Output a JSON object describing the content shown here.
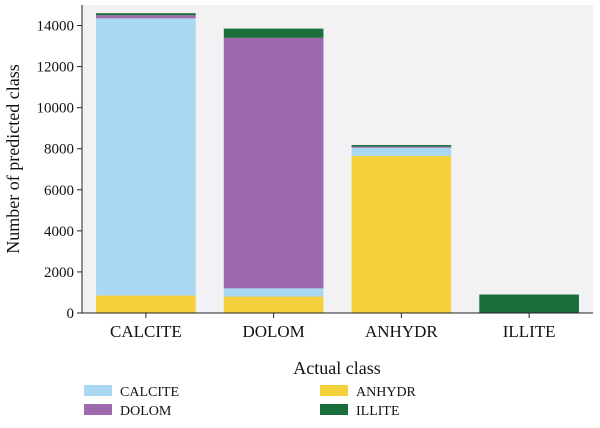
{
  "chart_data": {
    "type": "bar",
    "stacked": true,
    "title": "",
    "xlabel": "Actual class",
    "ylabel": "Number of predicted class",
    "categories": [
      "CALCITE",
      "DOLOM",
      "ANHYDR",
      "ILLITE"
    ],
    "ylim": [
      0,
      15000
    ],
    "yticks": [
      0,
      2000,
      4000,
      6000,
      8000,
      10000,
      12000,
      14000
    ],
    "grid": false,
    "background": "#f2f2f4",
    "legend_placement": "bottom",
    "series": [
      {
        "name": "ANHYDR",
        "color": "#f5d03d",
        "values": [
          850,
          800,
          7650,
          0
        ]
      },
      {
        "name": "CALCITE",
        "color": "#aad8f2",
        "values": [
          13500,
          400,
          400,
          0
        ]
      },
      {
        "name": "DOLOM",
        "color": "#9e69ad",
        "values": [
          150,
          12200,
          50,
          0
        ]
      },
      {
        "name": "ILLITE",
        "color": "#1a6e3c",
        "values": [
          100,
          450,
          80,
          900
        ]
      }
    ],
    "legend": [
      {
        "name": "CALCITE",
        "color": "#aad8f2"
      },
      {
        "name": "ANHYDR",
        "color": "#f5d03d"
      },
      {
        "name": "DOLOM",
        "color": "#9e69ad"
      },
      {
        "name": "ILLITE",
        "color": "#1a6e3c"
      }
    ]
  }
}
